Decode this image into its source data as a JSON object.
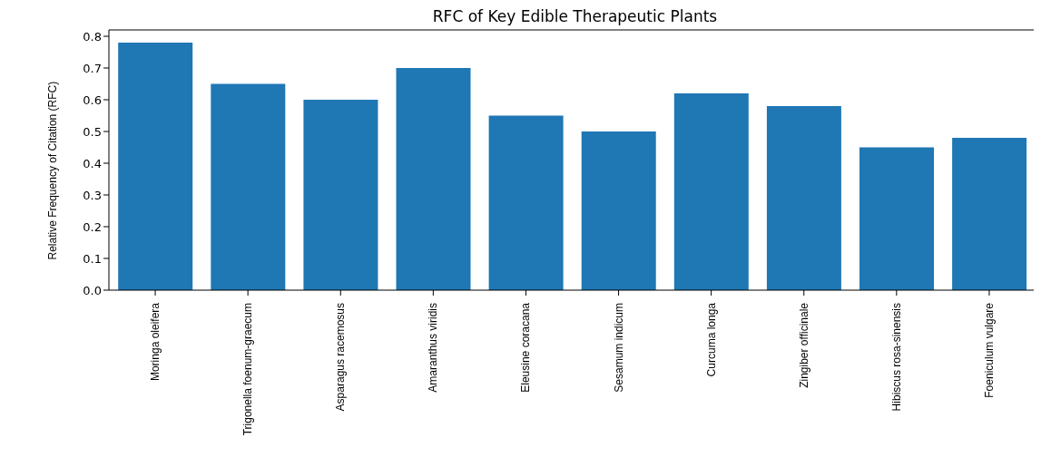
{
  "chart_data": {
    "type": "bar",
    "title": "RFC of Key Edible Therapeutic Plants",
    "ylabel": "Relative Frequency of Citation (RFC)",
    "categories": [
      "Moringa oleifera",
      "Trigonella foenum-graecum",
      "Asparagus racemosus",
      "Amaranthus viridis",
      "Eleusine coracana",
      "Sesamum indicum",
      "Curcuma longa",
      "Zingiber officinale",
      "Hibiscus rosa-sinensis",
      "Foeniculum vulgare"
    ],
    "values": [
      0.78,
      0.65,
      0.6,
      0.7,
      0.55,
      0.5,
      0.62,
      0.58,
      0.45,
      0.48
    ],
    "color": "#1f77b4",
    "ylim": [
      0,
      0.82
    ],
    "yticks": [
      {
        "value": 0,
        "label": "0.0"
      },
      0.1,
      0.2,
      0.3,
      0.4,
      0.5,
      0.6,
      0.7,
      0.8
    ],
    "grid": false
  }
}
